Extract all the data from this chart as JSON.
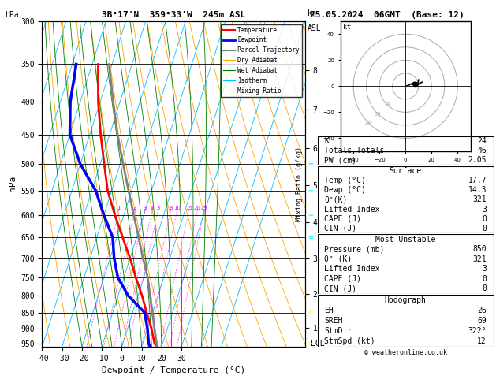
{
  "title_left": "3B°17'N  359°33'W  245m ASL",
  "title_right": "25.05.2024  06GMT  (Base: 12)",
  "xlabel": "Dewpoint / Temperature (°C)",
  "ylabel_left": "hPa",
  "ylabel_right_km": "km\nASL",
  "pressure_levels": [
    300,
    350,
    400,
    450,
    500,
    550,
    600,
    650,
    700,
    750,
    800,
    850,
    900,
    950
  ],
  "pressure_ticks": [
    300,
    350,
    400,
    450,
    500,
    550,
    600,
    650,
    700,
    750,
    800,
    850,
    900,
    950
  ],
  "temp_ticks": [
    -40,
    -30,
    -20,
    -10,
    0,
    10,
    20,
    30
  ],
  "pmin": 300,
  "pmax": 960,
  "tmin": -40,
  "tmax": 40,
  "skew_factor": 0.65,
  "background_color": "#ffffff",
  "grid_color": "#000000",
  "temp_profile": {
    "temps": [
      17.7,
      16.0,
      12.0,
      7.0,
      2.0,
      -4.0,
      -10.0,
      -17.0,
      -24.5,
      -32.0,
      -38.0,
      -44.5,
      -51.0,
      -57.0
    ],
    "pressures": [
      960,
      950,
      900,
      850,
      800,
      750,
      700,
      650,
      600,
      550,
      500,
      450,
      400,
      350
    ],
    "color": "#ff0000",
    "linewidth": 2.0
  },
  "dewp_profile": {
    "temps": [
      14.3,
      13.0,
      10.0,
      6.0,
      -5.0,
      -13.0,
      -18.0,
      -22.0,
      -30.0,
      -38.0,
      -50.0,
      -60.0,
      -65.0,
      -68.0
    ],
    "pressures": [
      960,
      950,
      900,
      850,
      800,
      750,
      700,
      650,
      600,
      550,
      500,
      450,
      400,
      350
    ],
    "color": "#0000ff",
    "linewidth": 2.5
  },
  "parcel_profile": {
    "temps": [
      17.7,
      17.0,
      13.5,
      10.0,
      6.0,
      2.0,
      -3.5,
      -9.0,
      -15.0,
      -21.5,
      -28.5,
      -36.0,
      -43.5,
      -51.5
    ],
    "pressures": [
      960,
      950,
      900,
      850,
      800,
      750,
      700,
      650,
      600,
      550,
      500,
      450,
      400,
      350
    ],
    "color": "#808080",
    "linewidth": 2.0
  },
  "lcl_pressure": 950,
  "lcl_label": "LCL",
  "mixing_ratio_lines": [
    1,
    2,
    3,
    4,
    5,
    8,
    10,
    15,
    20,
    25
  ],
  "mixing_ratio_color": "#ff00ff",
  "isotherm_color": "#00bfff",
  "dry_adiabat_color": "#ffa500",
  "wet_adiabat_color": "#008000",
  "km_ticks": [
    1,
    2,
    3,
    4,
    5,
    6,
    7,
    8
  ],
  "km_pressures": [
    898,
    795,
    700,
    616,
    540,
    472,
    411,
    357
  ],
  "legend_items": [
    {
      "label": "Temperature",
      "color": "#ff0000",
      "linestyle": "-",
      "linewidth": 1.5
    },
    {
      "label": "Dewpoint",
      "color": "#0000ff",
      "linestyle": "-",
      "linewidth": 2.0
    },
    {
      "label": "Parcel Trajectory",
      "color": "#808080",
      "linestyle": "-",
      "linewidth": 1.5
    },
    {
      "label": "Dry Adiabat",
      "color": "#ffa500",
      "linestyle": "-",
      "linewidth": 0.8
    },
    {
      "label": "Wet Adiabat",
      "color": "#008000",
      "linestyle": "-",
      "linewidth": 0.8
    },
    {
      "label": "Isotherm",
      "color": "#00bfff",
      "linestyle": "-",
      "linewidth": 0.8
    },
    {
      "label": "Mixing Ratio",
      "color": "#ff00ff",
      "linestyle": ":",
      "linewidth": 0.8
    }
  ],
  "table_data": {
    "K": 24,
    "Totals Totals": 46,
    "PW (cm)": "2.05",
    "Surface": {
      "Temp": "17.7",
      "Dewp": "14.3",
      "theta_eK": 321,
      "Lifted Index": 3,
      "CAPE": 0,
      "CIN": 0
    },
    "Most Unstable": {
      "Pressure": 850,
      "theta_eK": 321,
      "Lifted Index": 3,
      "CAPE": 0,
      "CIN": 0
    },
    "Hodograph": {
      "EH": 26,
      "SREH": 69,
      "StmDir": "322°",
      "StmSpd": 12
    }
  },
  "copyright": "© weatheronline.co.uk",
  "mixing_ratio_label_pressure": 590,
  "mixing_ratio_labels_show": [
    1,
    2,
    3,
    4,
    5,
    8,
    10,
    15,
    20,
    25
  ]
}
